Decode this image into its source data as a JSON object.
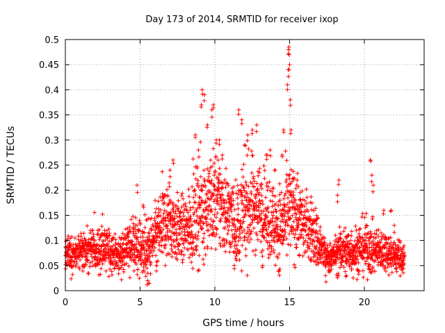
{
  "chart_data": {
    "type": "scatter",
    "title": "Day 173 of 2014, SRMTID for receiver ixop",
    "xlabel": "GPS time / hours",
    "ylabel": "SRMTID / TECUs",
    "xlim": [
      0,
      24
    ],
    "ylim": [
      0,
      0.5
    ],
    "x_ticks": [
      0,
      5,
      10,
      15,
      20
    ],
    "x_tick_labels": [
      "0",
      "5",
      "10",
      "15",
      "20"
    ],
    "y_ticks": [
      0,
      0.05,
      0.1,
      0.15,
      0.2,
      0.25,
      0.3,
      0.35,
      0.4,
      0.45,
      0.5
    ],
    "y_tick_labels": [
      "0",
      "0.05",
      "0.1",
      "0.15",
      "0.2",
      "0.25",
      "0.3",
      "0.35",
      "0.4",
      "0.45",
      "0.5"
    ],
    "grid": true,
    "marker": "plus",
    "color": "#ff0000",
    "profile": [
      [
        0.0,
        0.07,
        0.02
      ],
      [
        0.5,
        0.075,
        0.02
      ],
      [
        1.0,
        0.075,
        0.02
      ],
      [
        1.5,
        0.08,
        0.025
      ],
      [
        2.0,
        0.085,
        0.03
      ],
      [
        2.5,
        0.085,
        0.03
      ],
      [
        3.0,
        0.08,
        0.025
      ],
      [
        3.5,
        0.07,
        0.02
      ],
      [
        4.0,
        0.08,
        0.025
      ],
      [
        4.5,
        0.095,
        0.035
      ],
      [
        5.0,
        0.085,
        0.04
      ],
      [
        5.5,
        0.08,
        0.035
      ],
      [
        6.0,
        0.1,
        0.04
      ],
      [
        6.5,
        0.13,
        0.05
      ],
      [
        7.0,
        0.14,
        0.05
      ],
      [
        7.5,
        0.12,
        0.04
      ],
      [
        8.0,
        0.12,
        0.04
      ],
      [
        8.5,
        0.14,
        0.05
      ],
      [
        9.0,
        0.16,
        0.06
      ],
      [
        9.5,
        0.17,
        0.06
      ],
      [
        10.0,
        0.18,
        0.06
      ],
      [
        10.5,
        0.17,
        0.06
      ],
      [
        11.0,
        0.15,
        0.05
      ],
      [
        11.5,
        0.13,
        0.05
      ],
      [
        12.0,
        0.16,
        0.06
      ],
      [
        12.5,
        0.17,
        0.06
      ],
      [
        13.0,
        0.17,
        0.05
      ],
      [
        13.5,
        0.15,
        0.05
      ],
      [
        14.0,
        0.13,
        0.05
      ],
      [
        14.5,
        0.13,
        0.05
      ],
      [
        15.0,
        0.16,
        0.06
      ],
      [
        15.5,
        0.15,
        0.05
      ],
      [
        16.0,
        0.13,
        0.04
      ],
      [
        16.5,
        0.12,
        0.04
      ],
      [
        17.0,
        0.09,
        0.035
      ],
      [
        17.5,
        0.065,
        0.015
      ],
      [
        18.0,
        0.07,
        0.02
      ],
      [
        18.5,
        0.08,
        0.03
      ],
      [
        19.0,
        0.08,
        0.03
      ],
      [
        19.5,
        0.08,
        0.03
      ],
      [
        20.0,
        0.09,
        0.035
      ],
      [
        20.5,
        0.08,
        0.03
      ],
      [
        21.0,
        0.08,
        0.025
      ],
      [
        21.5,
        0.08,
        0.025
      ],
      [
        22.0,
        0.07,
        0.02
      ],
      [
        22.7,
        0.065,
        0.02
      ]
    ],
    "spikes": [
      [
        4.8,
        0.21
      ],
      [
        5.2,
        0.17
      ],
      [
        7.0,
        0.24
      ],
      [
        7.2,
        0.26
      ],
      [
        8.7,
        0.31
      ],
      [
        8.9,
        0.28
      ],
      [
        9.1,
        0.37
      ],
      [
        9.15,
        0.4
      ],
      [
        9.3,
        0.39
      ],
      [
        9.5,
        0.33
      ],
      [
        9.8,
        0.36
      ],
      [
        9.9,
        0.37
      ],
      [
        10.1,
        0.3
      ],
      [
        10.3,
        0.3
      ],
      [
        10.5,
        0.27
      ],
      [
        11.6,
        0.36
      ],
      [
        11.8,
        0.34
      ],
      [
        12.0,
        0.29
      ],
      [
        12.2,
        0.31
      ],
      [
        12.5,
        0.32
      ],
      [
        12.8,
        0.33
      ],
      [
        13.5,
        0.27
      ],
      [
        13.7,
        0.28
      ],
      [
        14.0,
        0.24
      ],
      [
        14.5,
        0.27
      ],
      [
        14.6,
        0.32
      ],
      [
        14.85,
        0.41
      ],
      [
        14.9,
        0.44
      ],
      [
        14.93,
        0.48
      ],
      [
        14.95,
        0.485
      ],
      [
        15.0,
        0.45
      ],
      [
        15.05,
        0.38
      ],
      [
        15.1,
        0.32
      ],
      [
        15.5,
        0.22
      ],
      [
        18.3,
        0.22
      ],
      [
        18.2,
        0.19
      ],
      [
        20.4,
        0.26
      ],
      [
        20.5,
        0.23
      ],
      [
        20.6,
        0.21
      ],
      [
        21.3,
        0.16
      ],
      [
        21.8,
        0.16
      ],
      [
        22.0,
        0.13
      ],
      [
        5.5,
        0.02
      ],
      [
        5.6,
        0.015
      ],
      [
        6.1,
        0.05
      ],
      [
        17.4,
        0.03
      ],
      [
        17.6,
        0.04
      ],
      [
        18.8,
        0.03
      ],
      [
        11.3,
        0.05
      ],
      [
        13.2,
        0.05
      ],
      [
        14.3,
        0.04
      ]
    ],
    "n_points": 2600
  }
}
